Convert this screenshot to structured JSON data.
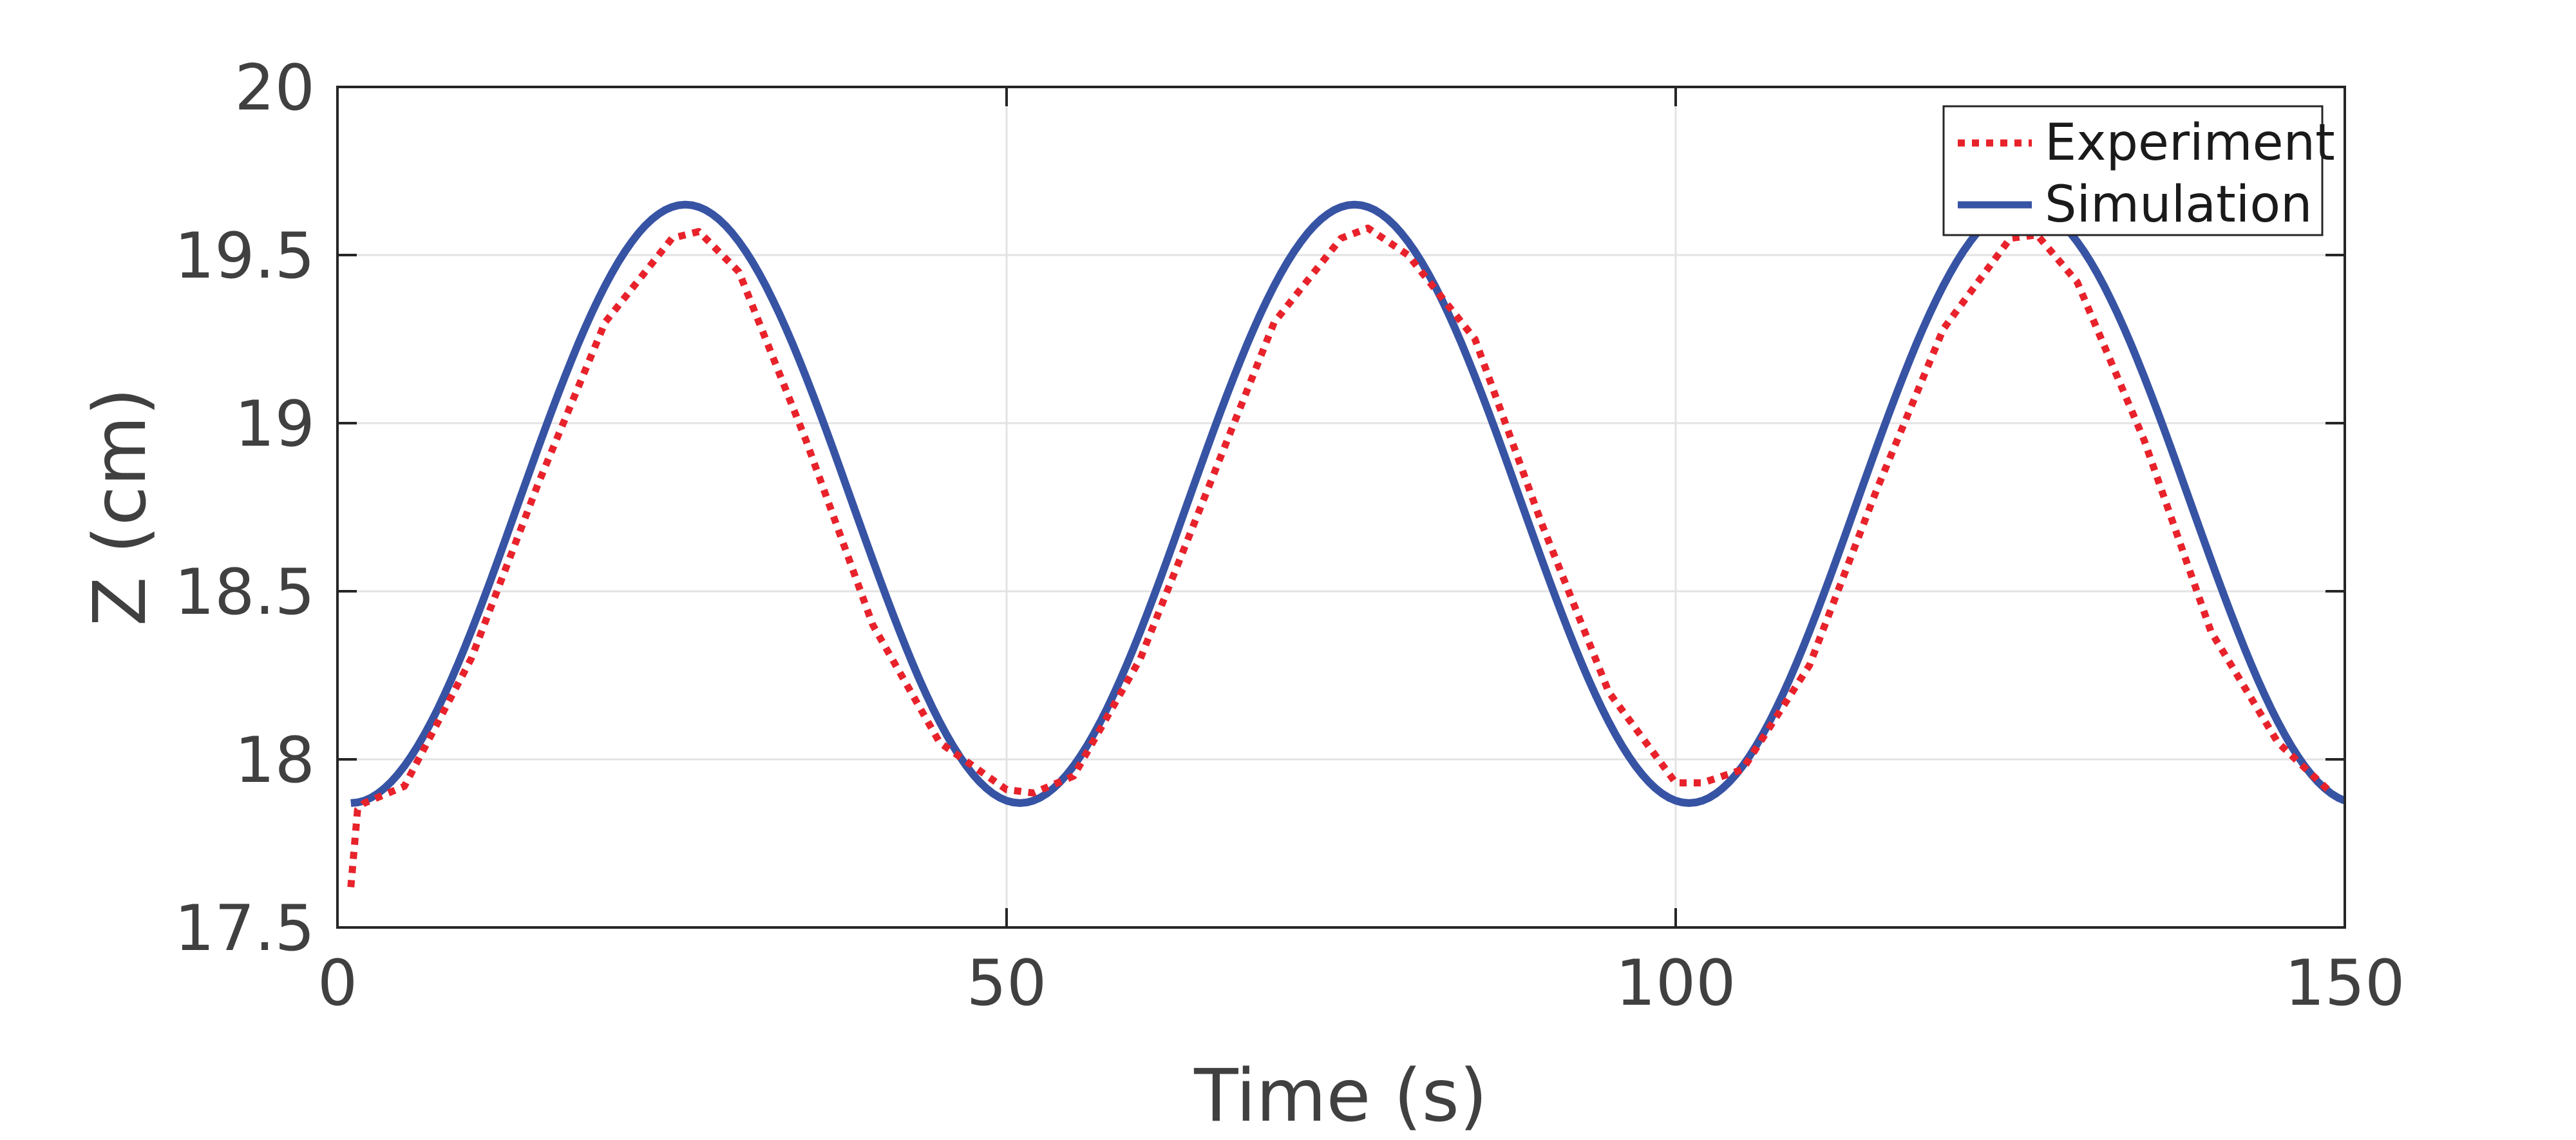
{
  "chart_data": {
    "type": "line",
    "xlabel": "Time (s)",
    "ylabel": "Z (cm)",
    "xlim": [
      0,
      150
    ],
    "ylim": [
      17.5,
      20
    ],
    "xticks": [
      0,
      50,
      100,
      150
    ],
    "xtick_labels": [
      "0",
      "50",
      "100",
      "150"
    ],
    "yticks": [
      17.5,
      18,
      18.5,
      19,
      19.5,
      20
    ],
    "ytick_labels": [
      "17.5",
      "18",
      "18.5",
      "19",
      "19.5",
      "20"
    ],
    "grid": true,
    "legend_position": "top-right",
    "series": [
      {
        "name": "Experiment",
        "color": "#e8222b",
        "style": "dotted",
        "x": [
          1,
          1.5,
          2,
          5,
          10,
          15,
          20,
          25,
          27,
          30,
          35,
          40,
          45,
          50,
          52,
          55,
          60,
          65,
          70,
          75,
          77,
          80,
          85,
          90,
          95,
          100,
          102,
          105,
          110,
          115,
          120,
          125,
          127,
          130,
          135,
          140,
          145,
          149
        ],
        "y": [
          17.62,
          17.85,
          17.87,
          17.92,
          18.3,
          18.82,
          19.3,
          19.55,
          19.57,
          19.45,
          18.95,
          18.4,
          18.05,
          17.91,
          17.9,
          17.95,
          18.3,
          18.8,
          19.3,
          19.55,
          19.58,
          19.5,
          19.25,
          18.7,
          18.2,
          17.93,
          17.93,
          17.97,
          18.28,
          18.8,
          19.28,
          19.55,
          19.56,
          19.42,
          18.95,
          18.38,
          18.05,
          17.9
        ]
      },
      {
        "name": "Simulation",
        "color": "#3753a4",
        "style": "solid",
        "model": {
          "type": "cosine",
          "mean": 18.76,
          "amplitude": 0.89,
          "period": 50,
          "phase": 1,
          "x_start": 1,
          "x_end": 150
        }
      }
    ]
  }
}
